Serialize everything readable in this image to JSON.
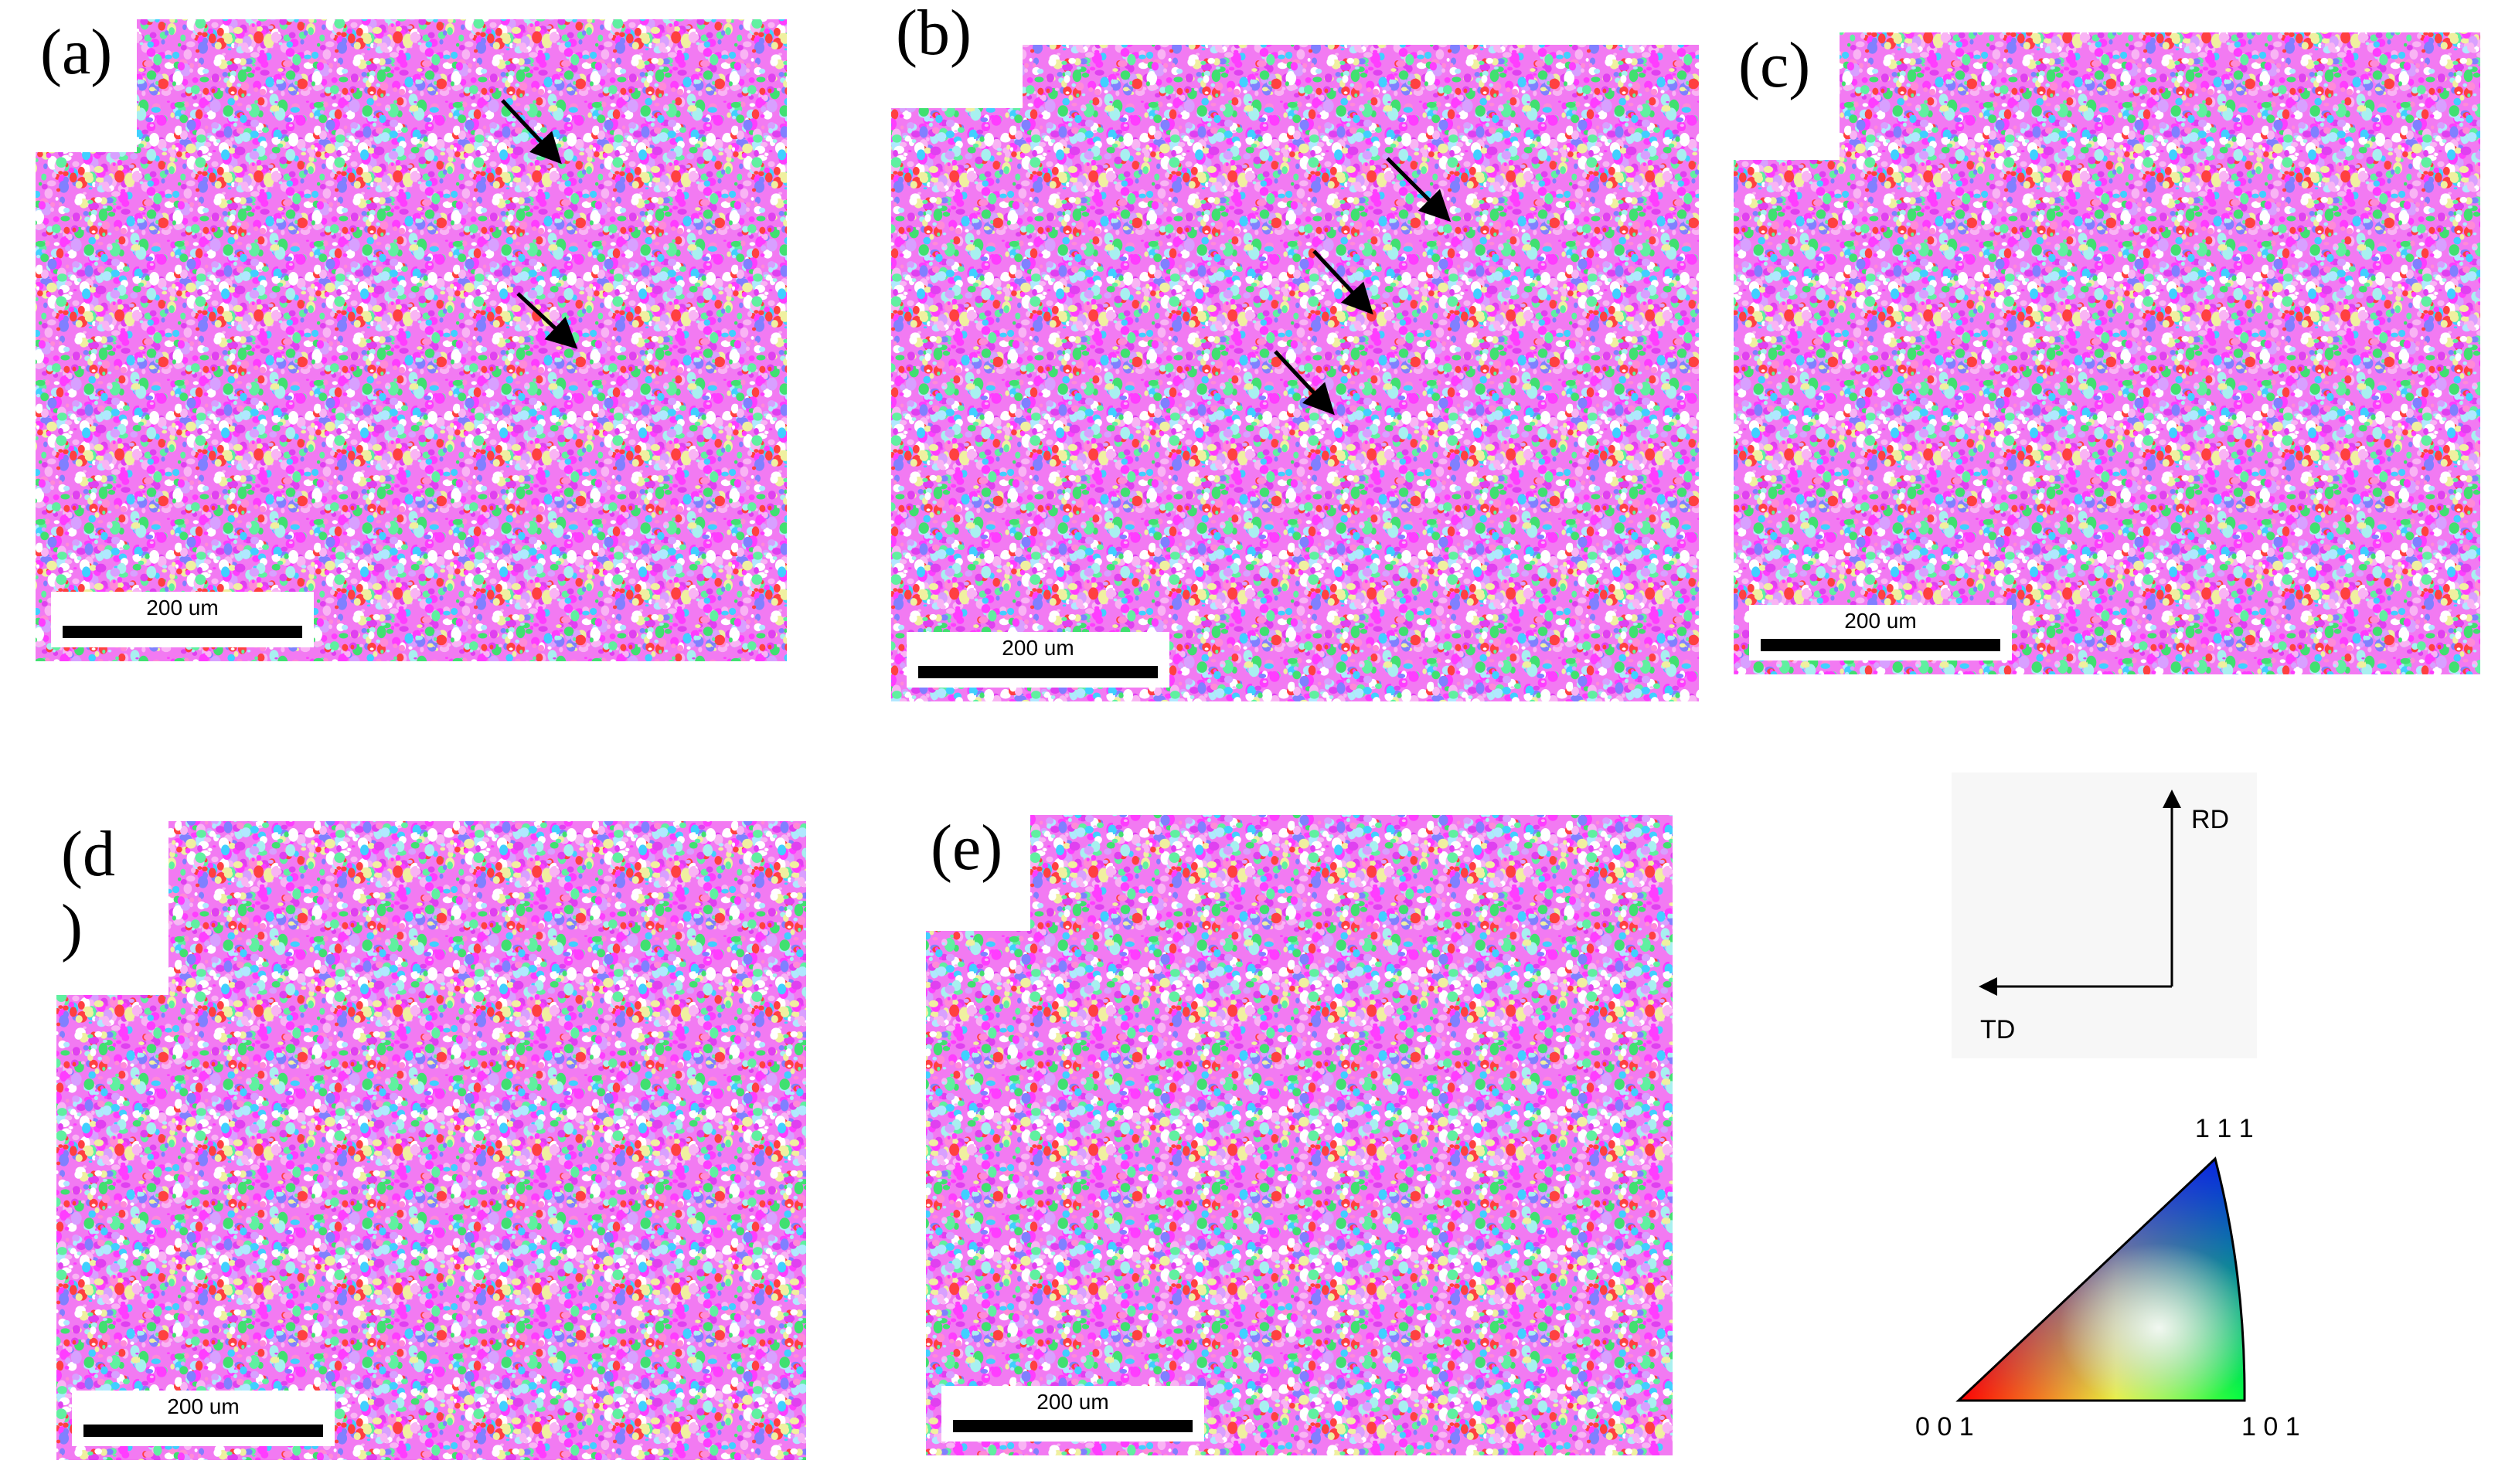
{
  "panels": [
    {
      "label_lines": [
        "(a)"
      ],
      "scale_bar": "200 um"
    },
    {
      "label_lines": [
        "(b)"
      ],
      "scale_bar": "200 um"
    },
    {
      "label_lines": [
        "(c)"
      ],
      "scale_bar": "200 um"
    },
    {
      "label_lines": [
        "(d",
        ")"
      ],
      "scale_bar": "200 um"
    },
    {
      "label_lines": [
        "(e)"
      ],
      "scale_bar": "200 um"
    }
  ],
  "reference_frame": {
    "rd": "RD",
    "td": "TD"
  },
  "ipf_legend": {
    "corner_001": "0 0 1",
    "corner_101": "1 0 1",
    "corner_111": "1 1 1"
  }
}
